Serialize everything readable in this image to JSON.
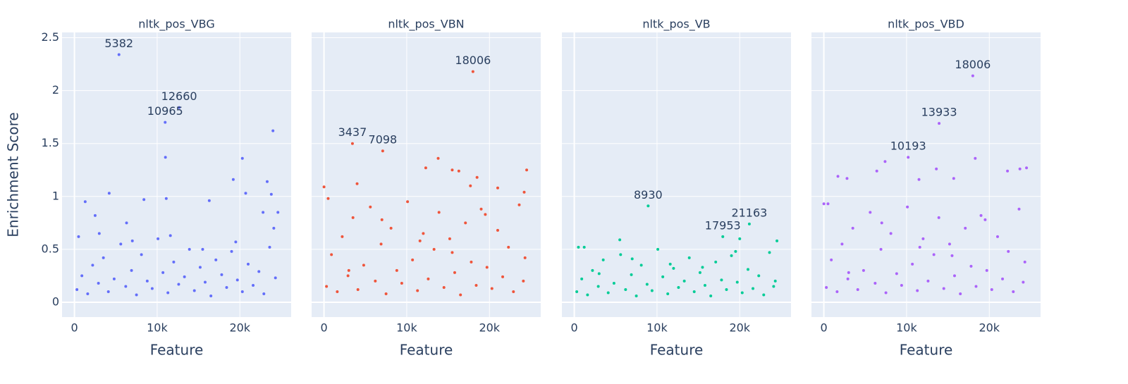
{
  "chart_data": {
    "type": "scatter",
    "y_label": "Enrichment Score",
    "ylim": [
      -0.14,
      2.55
    ],
    "yticks": [
      0,
      0.5,
      1,
      1.5,
      2,
      2.5
    ],
    "grid": true,
    "panels": [
      {
        "title": "nltk_pos_VBG",
        "color": "#636efa",
        "x_label": "Feature",
        "xlim": [
          -1500,
          26200
        ],
        "xticks": [
          0,
          {
            "value": 10000,
            "label": "10k"
          },
          {
            "value": 20000,
            "label": "20k"
          }
        ],
        "x": [
          300,
          900,
          1600,
          2200,
          2900,
          3500,
          4100,
          4800,
          5600,
          6200,
          6900,
          7500,
          8100,
          8800,
          9400,
          10100,
          10700,
          11300,
          12000,
          12600,
          13300,
          13900,
          14500,
          15200,
          15800,
          16500,
          17100,
          17800,
          18400,
          19000,
          19700,
          20300,
          21000,
          21600,
          22300,
          22900,
          23600,
          24300,
          500,
          3000,
          7000,
          11600,
          15500,
          19500,
          24100,
          5382,
          12660,
          10965,
          11000,
          24000,
          20300,
          19200,
          23300,
          20700,
          23800,
          4200,
          8400,
          11100,
          1300,
          16300,
          24600,
          22800,
          2500,
          6300
        ],
        "y": [
          0.12,
          0.25,
          0.08,
          0.35,
          0.18,
          0.42,
          0.1,
          0.22,
          0.55,
          0.15,
          0.3,
          0.07,
          0.45,
          0.2,
          0.13,
          0.6,
          0.28,
          0.09,
          0.38,
          0.17,
          0.24,
          0.5,
          0.11,
          0.33,
          0.19,
          0.06,
          0.4,
          0.26,
          0.14,
          0.48,
          0.21,
          0.1,
          0.36,
          0.16,
          0.29,
          0.08,
          0.52,
          0.23,
          0.62,
          0.65,
          0.58,
          0.63,
          0.5,
          0.57,
          0.7,
          2.34,
          1.84,
          1.7,
          1.37,
          1.62,
          1.36,
          1.16,
          1.14,
          1.03,
          1.02,
          1.03,
          0.97,
          0.98,
          0.95,
          0.96,
          0.85,
          0.85,
          0.82,
          0.75
        ],
        "annotations": [
          {
            "x": 5382,
            "y": 2.34,
            "text": "5382"
          },
          {
            "x": 12660,
            "y": 1.84,
            "text": "12660"
          },
          {
            "x": 10965,
            "y": 1.7,
            "text": "10965"
          }
        ]
      },
      {
        "title": "nltk_pos_VBN",
        "color": "#ef553b",
        "x_label": "Feature",
        "xlim": [
          -1500,
          26200
        ],
        "xticks": [
          0,
          {
            "value": 10000,
            "label": "10k"
          },
          {
            "value": 20000,
            "label": "20k"
          }
        ],
        "x": [
          300,
          900,
          1600,
          2200,
          2900,
          3500,
          4100,
          4800,
          5600,
          6200,
          6900,
          7500,
          8100,
          8800,
          9400,
          10100,
          10700,
          11300,
          12000,
          12600,
          13300,
          13900,
          14500,
          15200,
          15800,
          16500,
          17100,
          17800,
          18400,
          19000,
          19700,
          20300,
          21000,
          21600,
          22300,
          22900,
          23600,
          24300,
          500,
          3000,
          7000,
          11600,
          15500,
          19500,
          24100,
          18006,
          3437,
          7098,
          13800,
          15500,
          24500,
          16300,
          12300,
          18500,
          17700,
          4000,
          0,
          21000,
          24200
        ],
        "y": [
          0.15,
          0.45,
          0.1,
          0.62,
          0.25,
          0.8,
          0.12,
          0.35,
          0.9,
          0.2,
          0.55,
          0.08,
          0.7,
          0.3,
          0.18,
          0.95,
          0.4,
          0.11,
          0.65,
          0.22,
          0.5,
          0.85,
          0.14,
          0.6,
          0.28,
          0.07,
          0.75,
          0.38,
          0.16,
          0.88,
          0.33,
          0.13,
          0.68,
          0.24,
          0.52,
          0.1,
          0.92,
          0.42,
          0.98,
          0.3,
          0.78,
          0.58,
          0.47,
          0.83,
          0.2,
          2.18,
          1.5,
          1.43,
          1.36,
          1.25,
          1.25,
          1.24,
          1.27,
          1.18,
          1.1,
          1.12,
          1.09,
          1.08,
          1.04
        ],
        "annotations": [
          {
            "x": 18006,
            "y": 2.18,
            "text": "18006"
          },
          {
            "x": 3437,
            "y": 1.5,
            "text": "3437"
          },
          {
            "x": 7098,
            "y": 1.43,
            "text": "7098"
          }
        ]
      },
      {
        "title": "nltk_pos_VB",
        "color": "#00cc96",
        "x_label": "Feature",
        "xlim": [
          -1500,
          26200
        ],
        "xticks": [
          0,
          {
            "value": 10000,
            "label": "10k"
          },
          {
            "value": 20000,
            "label": "20k"
          }
        ],
        "x": [
          300,
          900,
          1600,
          2200,
          2900,
          3500,
          4100,
          4800,
          5600,
          6200,
          6900,
          7500,
          8100,
          8800,
          9400,
          10100,
          10700,
          11300,
          12000,
          12600,
          13300,
          13900,
          14500,
          15200,
          15800,
          16500,
          17100,
          17800,
          18400,
          19000,
          19700,
          20300,
          21000,
          21600,
          22300,
          22900,
          23600,
          24300,
          500,
          3000,
          7000,
          11600,
          15500,
          19500,
          24100,
          8930,
          21163,
          17953,
          20000,
          5500,
          24500,
          1200
        ],
        "y": [
          0.1,
          0.22,
          0.07,
          0.3,
          0.15,
          0.4,
          0.09,
          0.18,
          0.45,
          0.12,
          0.26,
          0.06,
          0.35,
          0.17,
          0.11,
          0.5,
          0.24,
          0.08,
          0.32,
          0.14,
          0.2,
          0.42,
          0.1,
          0.28,
          0.16,
          0.06,
          0.38,
          0.21,
          0.12,
          0.44,
          0.19,
          0.09,
          0.31,
          0.13,
          0.25,
          0.07,
          0.47,
          0.2,
          0.52,
          0.27,
          0.41,
          0.36,
          0.33,
          0.48,
          0.15,
          0.91,
          0.74,
          0.62,
          0.6,
          0.59,
          0.58,
          0.52
        ],
        "annotations": [
          {
            "x": 8930,
            "y": 0.91,
            "text": "8930"
          },
          {
            "x": 21163,
            "y": 0.74,
            "text": "21163"
          },
          {
            "x": 17953,
            "y": 0.62,
            "text": "17953"
          }
        ]
      },
      {
        "title": "nltk_pos_VBD",
        "color": "#ab63fa",
        "x_label": "Feature",
        "xlim": [
          -1500,
          26200
        ],
        "xticks": [
          0,
          {
            "value": 10000,
            "label": "10k"
          },
          {
            "value": 20000,
            "label": "20k"
          }
        ],
        "x": [
          300,
          900,
          1600,
          2200,
          2900,
          3500,
          4100,
          4800,
          5600,
          6200,
          6900,
          7500,
          8100,
          8800,
          9400,
          10100,
          10700,
          11300,
          12000,
          12600,
          13300,
          13900,
          14500,
          15200,
          15800,
          16500,
          17100,
          17800,
          18400,
          19000,
          19700,
          20300,
          21000,
          21600,
          22300,
          22900,
          23600,
          24300,
          500,
          3000,
          7000,
          11600,
          15500,
          19500,
          24100,
          18006,
          13933,
          10193,
          18300,
          7400,
          24500,
          23700,
          13600,
          6400,
          22200,
          1700,
          2800,
          15700,
          11500,
          0
        ],
        "y": [
          0.14,
          0.4,
          0.1,
          0.55,
          0.22,
          0.7,
          0.12,
          0.3,
          0.85,
          0.18,
          0.5,
          0.09,
          0.65,
          0.27,
          0.16,
          0.9,
          0.36,
          0.11,
          0.6,
          0.2,
          0.45,
          0.8,
          0.13,
          0.55,
          0.25,
          0.08,
          0.7,
          0.34,
          0.15,
          0.82,
          0.3,
          0.12,
          0.62,
          0.22,
          0.48,
          0.1,
          0.88,
          0.38,
          0.93,
          0.28,
          0.75,
          0.52,
          0.44,
          0.78,
          0.19,
          2.14,
          1.69,
          1.37,
          1.36,
          1.33,
          1.27,
          1.26,
          1.26,
          1.24,
          1.24,
          1.19,
          1.17,
          1.17,
          1.16,
          0.93
        ],
        "annotations": [
          {
            "x": 18006,
            "y": 2.14,
            "text": "18006"
          },
          {
            "x": 13933,
            "y": 1.69,
            "text": "13933"
          },
          {
            "x": 10193,
            "y": 1.37,
            "text": "10193"
          }
        ]
      }
    ]
  }
}
